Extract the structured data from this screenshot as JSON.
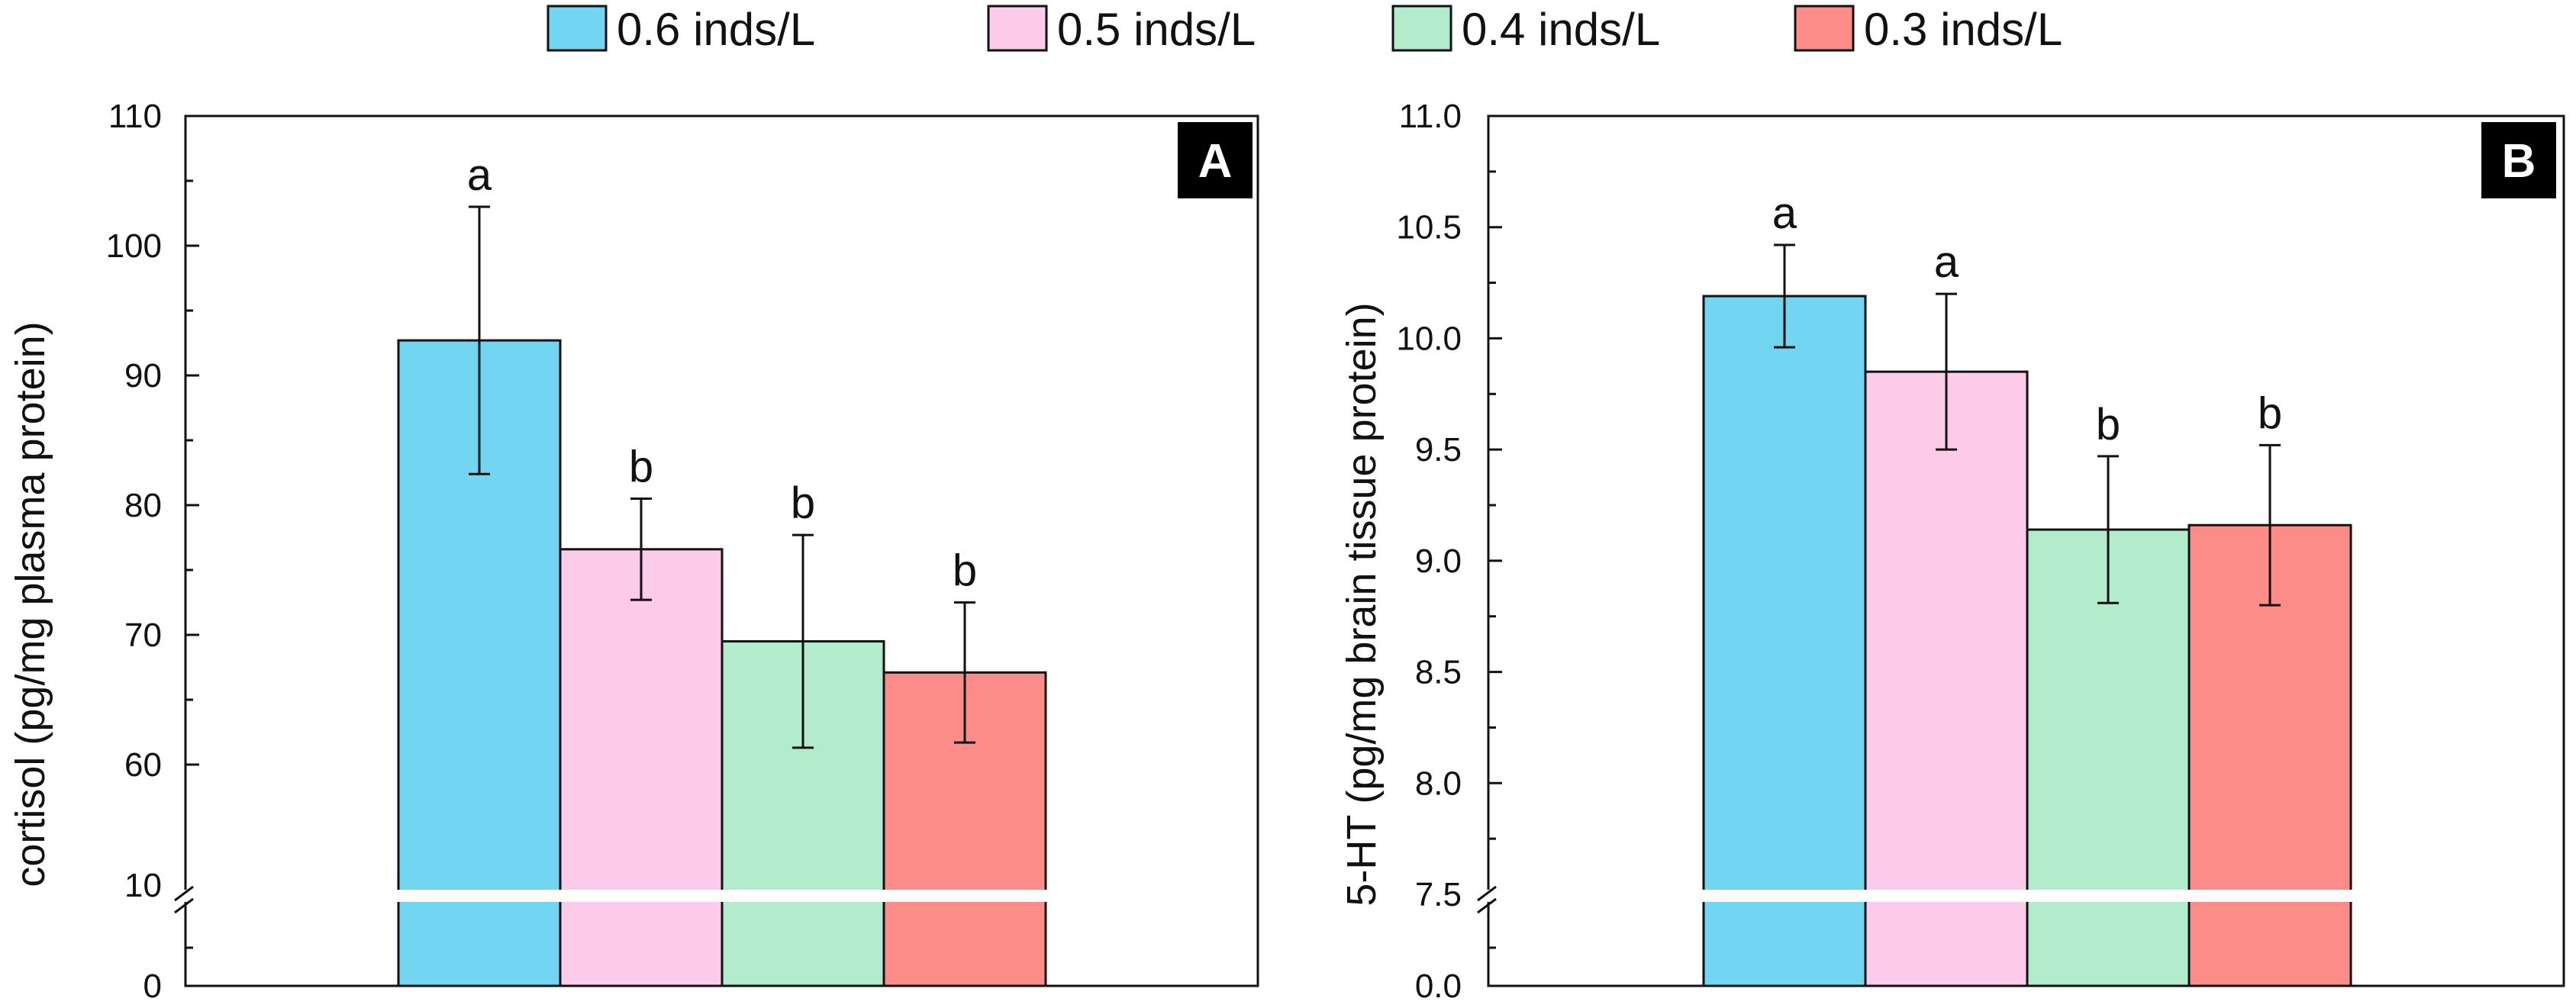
{
  "legend": [
    "0.6 inds/L",
    "0.5 inds/L",
    "0.4 inds/L",
    "0.3 inds/L"
  ],
  "colors": [
    "#72d5f2",
    "#fccbe9",
    "#b2eccd",
    "#fb8c88"
  ],
  "chart_data": [
    {
      "type": "bar",
      "panel_label": "A",
      "title": "",
      "xlabel": "",
      "ylabel": "cortisol (pg/mg plasma protein)",
      "series": [
        {
          "name": "0.6 inds/L",
          "value": 92.7,
          "error": 10.3,
          "letter": "a"
        },
        {
          "name": "0.5 inds/L",
          "value": 76.6,
          "error": 3.9,
          "letter": "b"
        },
        {
          "name": "0.4 inds/L",
          "value": 69.5,
          "error": 8.2,
          "letter": "b"
        },
        {
          "name": "0.3 inds/L",
          "value": 67.1,
          "error": 5.4,
          "letter": "b"
        }
      ],
      "y_ticks_upper": [
        "60",
        "70",
        "80",
        "90",
        "100",
        "110"
      ],
      "y_ticks_lower": [
        "0",
        "10"
      ],
      "ylim_upper": [
        50,
        110
      ],
      "ylim_lower": [
        0,
        10
      ],
      "axis_break": true
    },
    {
      "type": "bar",
      "panel_label": "B",
      "title": "",
      "xlabel": "",
      "ylabel": "5-HT (pg/mg brain tissue protein)",
      "series": [
        {
          "name": "0.6 inds/L",
          "value": 10.19,
          "error": 0.23,
          "letter": "a"
        },
        {
          "name": "0.5 inds/L",
          "value": 9.85,
          "error": 0.35,
          "letter": "a"
        },
        {
          "name": "0.4 inds/L",
          "value": 9.14,
          "error": 0.33,
          "letter": "b"
        },
        {
          "name": "0.3 inds/L",
          "value": 9.16,
          "error": 0.36,
          "letter": "b"
        }
      ],
      "y_ticks_upper": [
        "7.5",
        "8.0",
        "8.5",
        "9.0",
        "9.5",
        "10.0",
        "10.5",
        "11.0"
      ],
      "y_ticks_lower": [
        "0.0"
      ],
      "ylim_upper": [
        7.5,
        11.0
      ],
      "ylim_lower": [
        0,
        7.5
      ],
      "axis_break": true
    }
  ]
}
